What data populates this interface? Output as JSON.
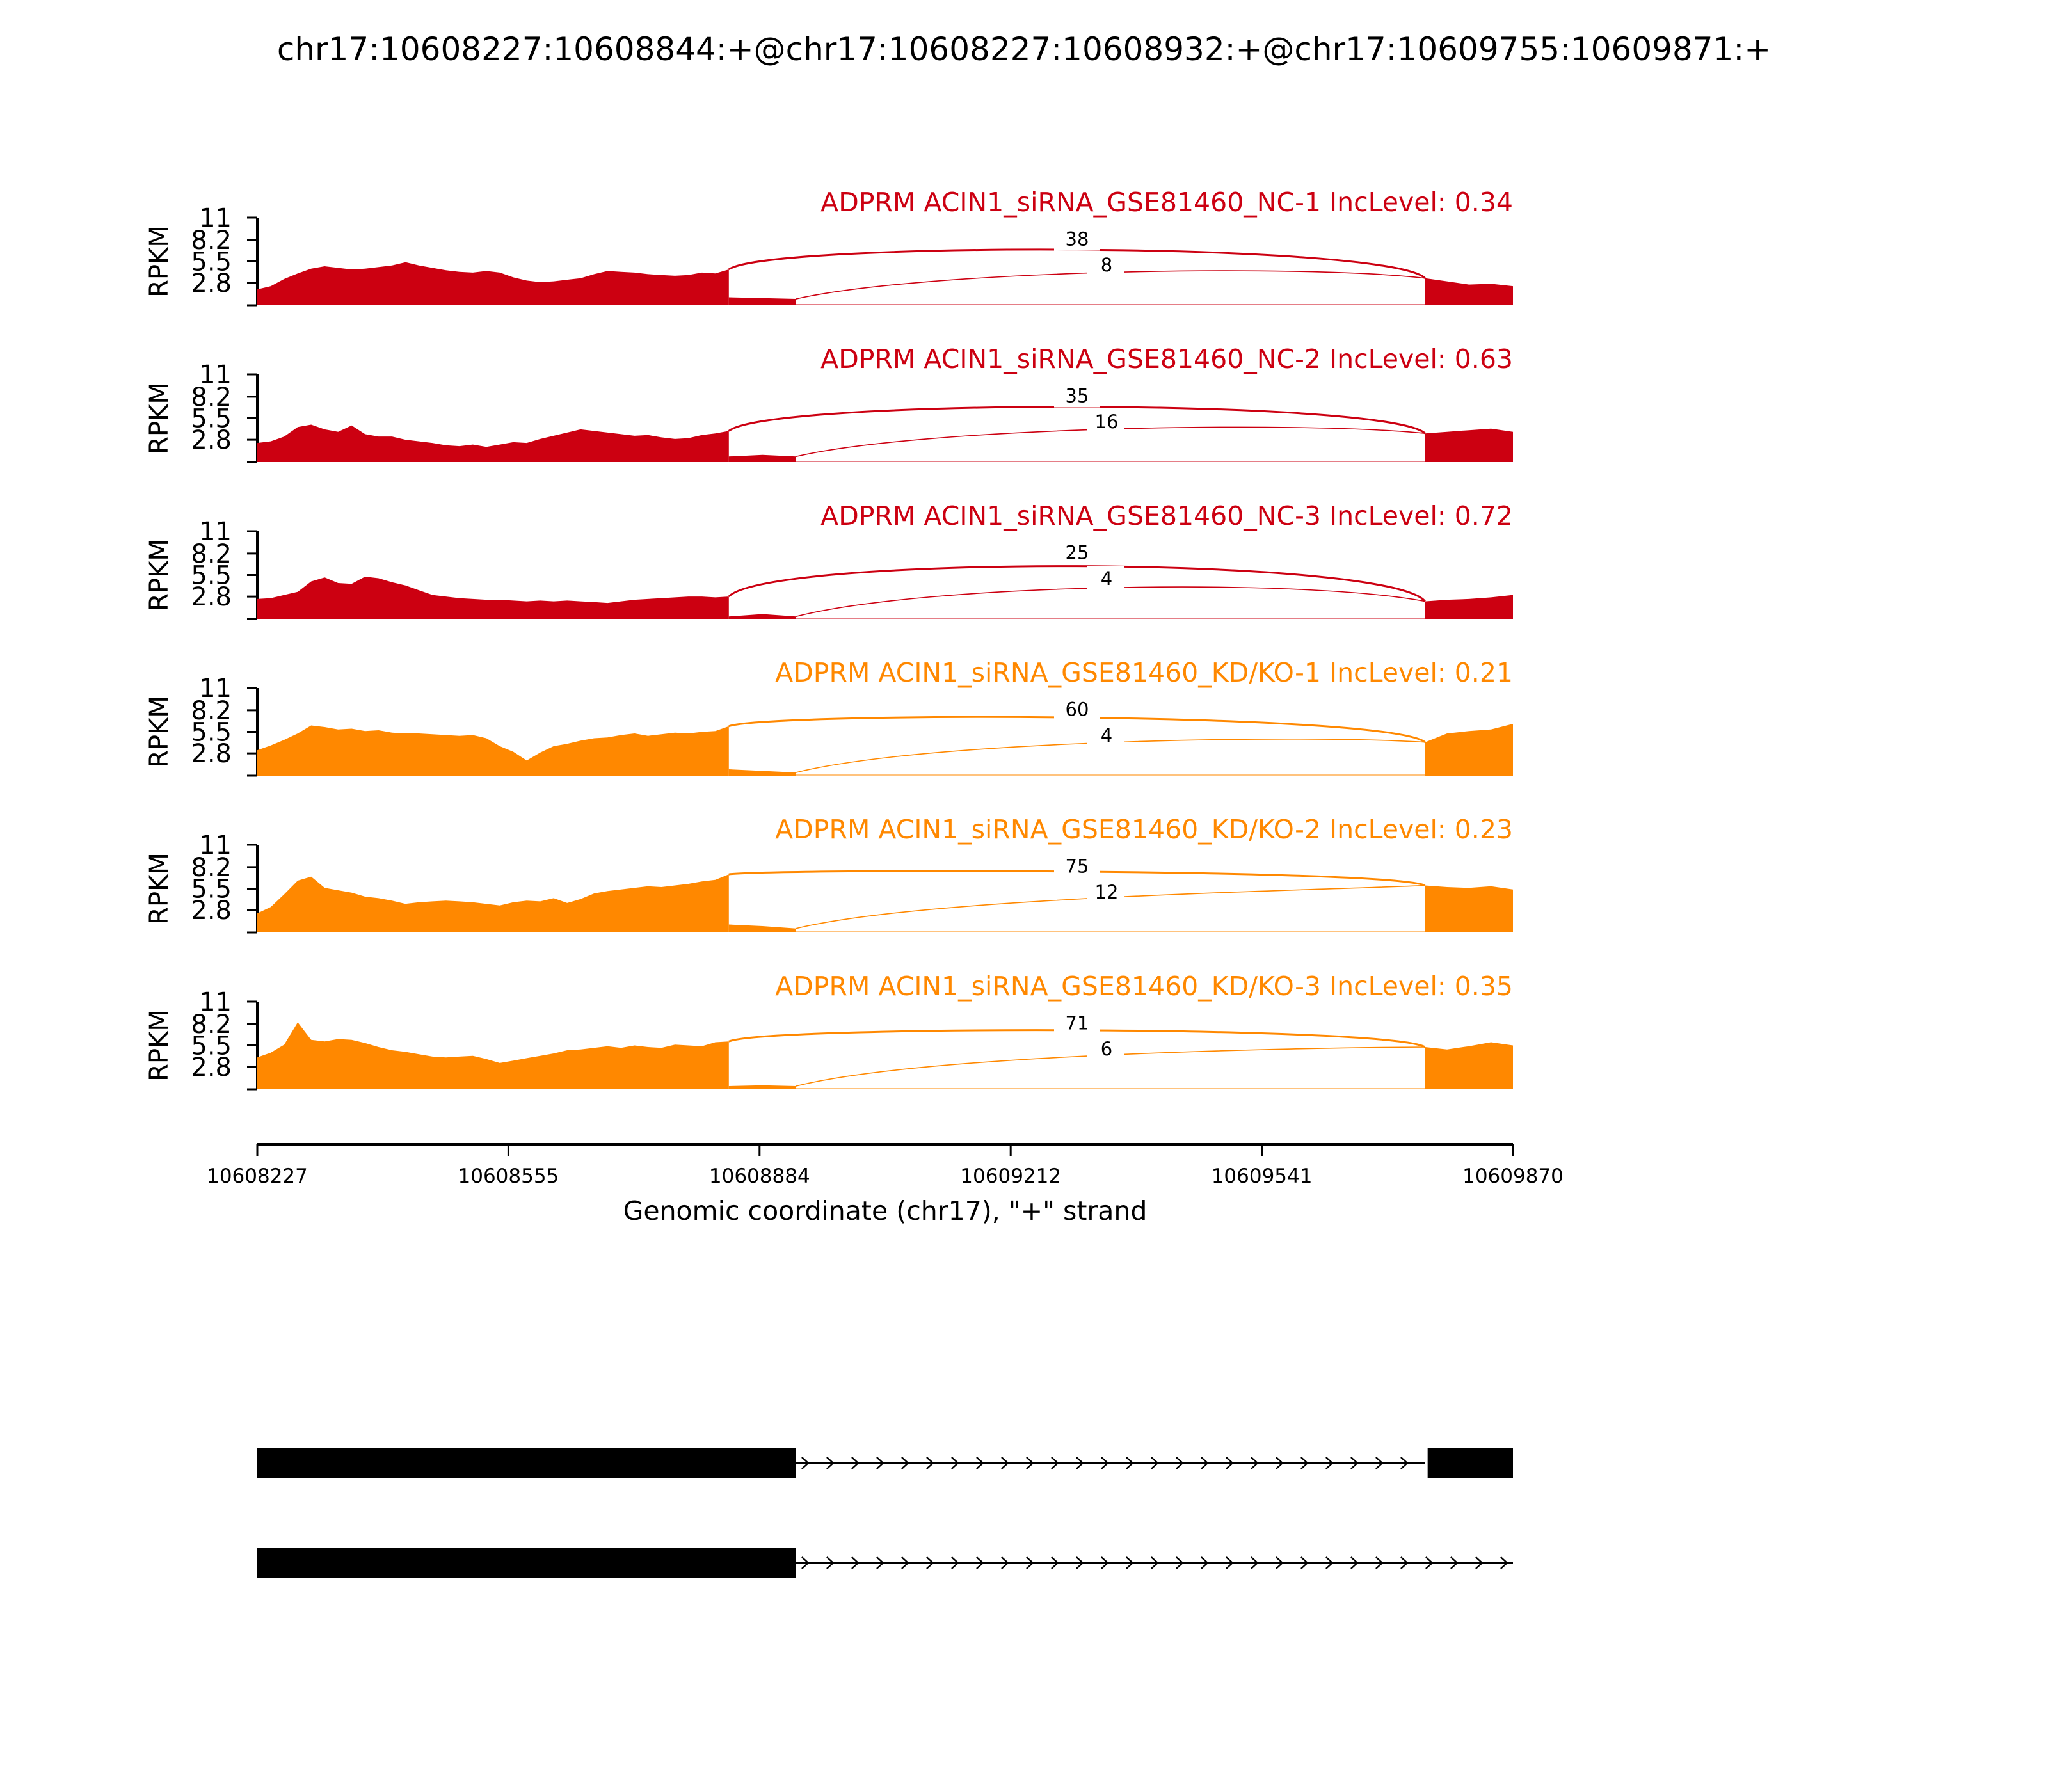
{
  "chart_data": {
    "type": "area",
    "title": "chr17:10608227:10608844:+@chr17:10608227:10608932:+@chr17:10609755:10609871:+",
    "xlabel": "Genomic coordinate (chr17), \"+\" strand",
    "ylabel": "RPKM",
    "xlim": [
      10608227,
      10609870
    ],
    "x_ticks": [
      "10608227",
      "10608555",
      "10608884",
      "10609212",
      "10609541",
      "10609870"
    ],
    "y_ticks": [
      "2.8",
      "5.5",
      "8.2",
      "11"
    ],
    "ylim": [
      0,
      11
    ],
    "colors": {
      "NC": "#cc0011",
      "KD": "#ff8800"
    },
    "exons": {
      "exon1": [
        10608227,
        10608844
      ],
      "exon1_long": [
        10608227,
        10608932
      ],
      "exon2": [
        10609755,
        10609871
      ]
    },
    "tracks": [
      {
        "label": "ADPRM ACIN1_siRNA_GSE81460_NC-1 IncLevel: 0.34",
        "group": "NC",
        "junction_skip": "38",
        "junction_inc": "8",
        "coverage": [
          2.0,
          2.4,
          3.3,
          4.0,
          4.6,
          4.9,
          4.7,
          4.5,
          4.6,
          4.8,
          5.0,
          5.4,
          5.0,
          4.7,
          4.4,
          4.2,
          4.1,
          4.3,
          4.1,
          3.5,
          3.1,
          2.9,
          3.0,
          3.2,
          3.4,
          3.9,
          4.3,
          4.2,
          4.1,
          3.9,
          3.8,
          3.7,
          3.8,
          4.1,
          4.0,
          4.5
        ],
        "mid": [
          1.0,
          0.9,
          0.8
        ],
        "right": [
          3.4,
          3.0,
          2.6,
          2.7,
          2.4
        ]
      },
      {
        "label": "ADPRM ACIN1_siRNA_GSE81460_NC-2 IncLevel: 0.63",
        "group": "NC",
        "junction_skip": "35",
        "junction_inc": "16",
        "coverage": [
          2.4,
          2.6,
          3.2,
          4.4,
          4.7,
          4.1,
          3.8,
          4.6,
          3.5,
          3.2,
          3.2,
          2.8,
          2.6,
          2.4,
          2.1,
          2.0,
          2.2,
          1.9,
          2.2,
          2.5,
          2.4,
          2.9,
          3.3,
          3.7,
          4.1,
          3.9,
          3.7,
          3.5,
          3.3,
          3.4,
          3.1,
          2.9,
          3.0,
          3.4,
          3.6,
          3.9
        ],
        "mid": [
          0.7,
          0.9,
          0.7
        ],
        "right": [
          3.6,
          3.8,
          4.0,
          4.2,
          3.8
        ]
      },
      {
        "label": "ADPRM ACIN1_siRNA_GSE81460_NC-3 IncLevel: 0.72",
        "group": "NC",
        "junction_skip": "25",
        "junction_inc": "4",
        "coverage": [
          2.5,
          2.6,
          3.0,
          3.4,
          4.7,
          5.2,
          4.5,
          4.4,
          5.3,
          5.1,
          4.6,
          4.2,
          3.6,
          3.0,
          2.8,
          2.6,
          2.5,
          2.4,
          2.4,
          2.3,
          2.2,
          2.3,
          2.2,
          2.3,
          2.2,
          2.1,
          2.0,
          2.2,
          2.4,
          2.5,
          2.6,
          2.7,
          2.8,
          2.8,
          2.7,
          2.8
        ],
        "mid": [
          0.3,
          0.6,
          0.3
        ],
        "right": [
          2.2,
          2.4,
          2.5,
          2.7,
          3.0
        ]
      },
      {
        "label": "ADPRM ACIN1_siRNA_GSE81460_KD/KO-1 IncLevel: 0.21",
        "group": "KD",
        "junction_skip": "60",
        "junction_inc": "4",
        "coverage": [
          3.2,
          3.8,
          4.5,
          5.3,
          6.3,
          6.1,
          5.8,
          5.9,
          5.6,
          5.7,
          5.4,
          5.3,
          5.3,
          5.2,
          5.1,
          5.0,
          5.1,
          4.7,
          3.7,
          3.0,
          1.9,
          2.9,
          3.7,
          4.0,
          4.4,
          4.7,
          4.8,
          5.1,
          5.3,
          5.0,
          5.2,
          5.4,
          5.3,
          5.5,
          5.6,
          6.2
        ],
        "mid": [
          0.8,
          0.6,
          0.4
        ],
        "right": [
          4.2,
          5.3,
          5.6,
          5.8,
          6.5
        ]
      },
      {
        "label": "ADPRM ACIN1_siRNA_GSE81460_KD/KO-2 IncLevel: 0.23",
        "group": "KD",
        "junction_skip": "75",
        "junction_inc": "12",
        "coverage": [
          2.4,
          3.2,
          4.8,
          6.5,
          7.0,
          5.6,
          5.3,
          5.0,
          4.5,
          4.3,
          4.0,
          3.6,
          3.8,
          3.9,
          4.0,
          3.9,
          3.8,
          3.6,
          3.4,
          3.8,
          4.0,
          3.9,
          4.3,
          3.7,
          4.2,
          4.9,
          5.2,
          5.4,
          5.6,
          5.8,
          5.7,
          5.9,
          6.1,
          6.4,
          6.6,
          7.3
        ],
        "mid": [
          1.0,
          0.8,
          0.5
        ],
        "right": [
          5.9,
          5.7,
          5.6,
          5.8,
          5.4
        ]
      },
      {
        "label": "ADPRM ACIN1_siRNA_GSE81460_KD/KO-3 IncLevel: 0.35",
        "group": "KD",
        "junction_skip": "71",
        "junction_inc": "6",
        "coverage": [
          4.0,
          4.6,
          5.6,
          8.4,
          6.2,
          6.0,
          6.3,
          6.2,
          5.8,
          5.3,
          4.9,
          4.7,
          4.4,
          4.1,
          4.0,
          4.1,
          4.2,
          3.8,
          3.3,
          3.6,
          3.9,
          4.2,
          4.5,
          4.9,
          5.0,
          5.2,
          5.4,
          5.2,
          5.5,
          5.3,
          5.2,
          5.6,
          5.5,
          5.4,
          5.9,
          6.0
        ],
        "mid": [
          0.4,
          0.5,
          0.4
        ],
        "right": [
          5.3,
          5.0,
          5.4,
          5.9,
          5.5
        ]
      }
    ]
  }
}
